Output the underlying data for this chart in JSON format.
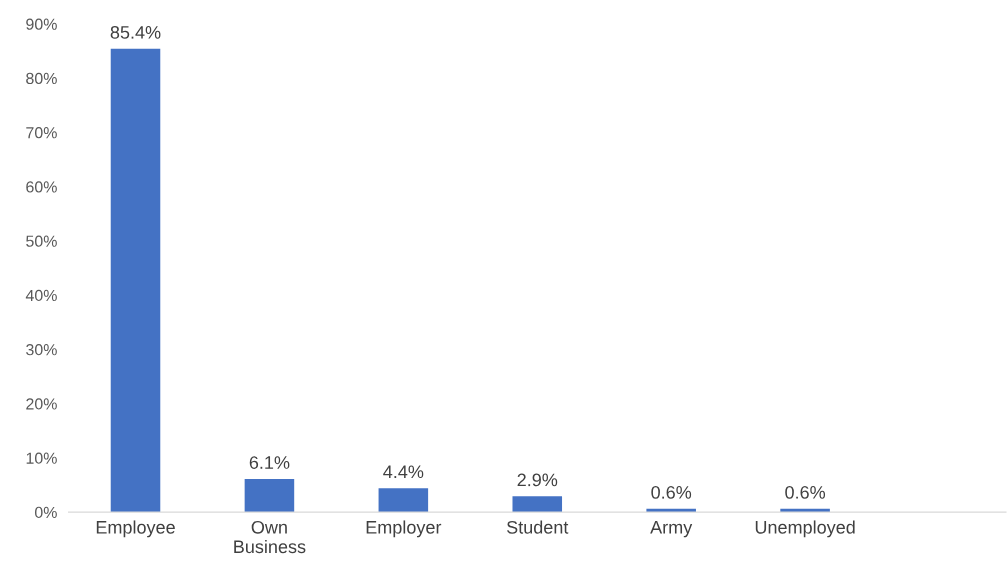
{
  "chart_data": {
    "type": "bar",
    "categories": [
      "Employee",
      "Own\nBusiness",
      "Employer",
      "Student",
      "Army",
      "Unemployed",
      null
    ],
    "values": [
      85.4,
      6.1,
      4.4,
      2.9,
      0.6,
      0.6,
      null
    ],
    "value_labels": [
      "85.4%",
      "6.1%",
      "4.4%",
      "2.9%",
      "0.6%",
      "0.6%",
      null
    ],
    "color": "#4472c4",
    "ylim": [
      0,
      90
    ],
    "yticks": [
      {
        "value": 0,
        "label": "0%"
      },
      {
        "value": 10,
        "label": "10%"
      },
      {
        "value": 20,
        "label": "20%"
      },
      {
        "value": 30,
        "label": "30%"
      },
      {
        "value": 40,
        "label": "40%"
      },
      {
        "value": 50,
        "label": "50%"
      },
      {
        "value": 60,
        "label": "60%"
      },
      {
        "value": 70,
        "label": "70%"
      },
      {
        "value": 80,
        "label": "80%"
      },
      {
        "value": 90,
        "label": "90%"
      }
    ],
    "grid": false
  }
}
